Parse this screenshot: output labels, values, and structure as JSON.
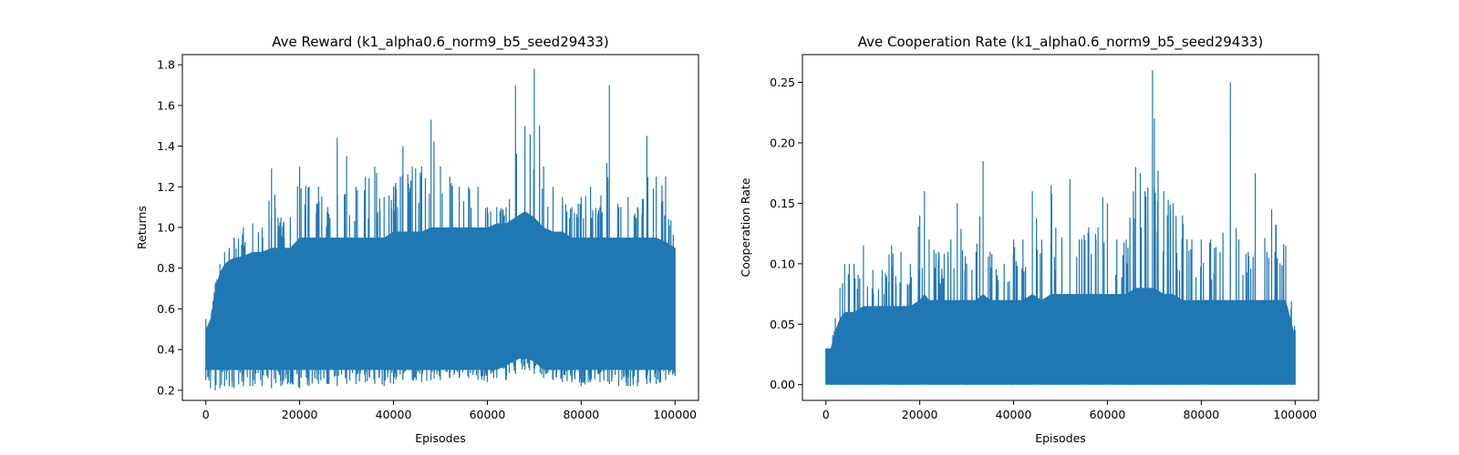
{
  "chart_data": [
    {
      "type": "line",
      "title": "Ave Reward (k1_alpha0.6_norm9_b5_seed29433)",
      "xlabel": "Episodes",
      "ylabel": "Returns",
      "xlim": [
        -5000,
        105000
      ],
      "ylim": [
        0.15,
        1.85
      ],
      "xticks": [
        0,
        20000,
        40000,
        60000,
        80000,
        100000
      ],
      "xtick_labels": [
        "0",
        "20000",
        "40000",
        "60000",
        "80000",
        "100000"
      ],
      "yticks": [
        0.2,
        0.4,
        0.6,
        0.8,
        1.0,
        1.2,
        1.4,
        1.6,
        1.8
      ],
      "ytick_labels": [
        "0.2",
        "0.4",
        "0.6",
        "0.8",
        "1.0",
        "1.2",
        "1.4",
        "1.6",
        "1.8"
      ],
      "grid": false,
      "color": "#1f77b4",
      "series": [
        {
          "x": [
            0,
            1000,
            2000,
            3000,
            4000,
            5000,
            6000,
            8000,
            10000,
            12000,
            14000,
            16000,
            18000,
            20000,
            22000,
            24000,
            26000,
            28000,
            30000,
            32000,
            34000,
            36000,
            38000,
            40000,
            42000,
            44000,
            46000,
            48000,
            50000,
            52000,
            54000,
            56000,
            58000,
            60000,
            62000,
            64000,
            66000,
            68000,
            70000,
            72000,
            74000,
            76000,
            78000,
            80000,
            82000,
            84000,
            86000,
            88000,
            90000,
            92000,
            94000,
            96000,
            98000,
            100000
          ],
          "lower": [
            0.25,
            0.21,
            0.2,
            0.21,
            0.22,
            0.22,
            0.21,
            0.22,
            0.22,
            0.22,
            0.21,
            0.22,
            0.23,
            0.21,
            0.22,
            0.23,
            0.23,
            0.22,
            0.23,
            0.23,
            0.24,
            0.23,
            0.22,
            0.23,
            0.25,
            0.25,
            0.24,
            0.25,
            0.25,
            0.26,
            0.26,
            0.26,
            0.25,
            0.24,
            0.26,
            0.25,
            0.28,
            0.3,
            0.28,
            0.26,
            0.25,
            0.24,
            0.24,
            0.22,
            0.24,
            0.24,
            0.23,
            0.22,
            0.22,
            0.22,
            0.23,
            0.23,
            0.25,
            0.27
          ],
          "upper": [
            0.55,
            0.55,
            0.72,
            0.82,
            0.88,
            0.9,
            0.95,
            1.0,
            1.02,
            1.0,
            1.29,
            1.05,
            1.05,
            1.3,
            1.2,
            1.2,
            1.1,
            1.44,
            1.35,
            1.2,
            1.25,
            1.3,
            1.15,
            1.2,
            1.4,
            1.3,
            1.3,
            1.53,
            1.3,
            1.25,
            1.2,
            1.2,
            1.2,
            1.1,
            1.1,
            1.1,
            1.7,
            1.5,
            1.78,
            1.3,
            1.2,
            1.15,
            1.1,
            1.15,
            1.2,
            1.1,
            1.7,
            1.1,
            1.15,
            1.1,
            1.45,
            1.25,
            1.25,
            0.9
          ],
          "core_low": [
            0.3,
            0.3,
            0.3,
            0.3,
            0.3,
            0.3,
            0.3,
            0.3,
            0.3,
            0.3,
            0.3,
            0.3,
            0.3,
            0.3,
            0.3,
            0.3,
            0.3,
            0.3,
            0.3,
            0.3,
            0.3,
            0.3,
            0.3,
            0.3,
            0.3,
            0.3,
            0.3,
            0.3,
            0.3,
            0.3,
            0.3,
            0.3,
            0.3,
            0.3,
            0.3,
            0.32,
            0.35,
            0.36,
            0.34,
            0.3,
            0.3,
            0.3,
            0.3,
            0.3,
            0.3,
            0.3,
            0.3,
            0.3,
            0.3,
            0.3,
            0.3,
            0.3,
            0.3,
            0.3
          ],
          "core_high": [
            0.5,
            0.55,
            0.7,
            0.78,
            0.82,
            0.84,
            0.85,
            0.86,
            0.88,
            0.88,
            0.9,
            0.9,
            0.9,
            0.95,
            0.95,
            0.95,
            0.95,
            0.95,
            0.95,
            0.95,
            0.95,
            0.95,
            0.95,
            0.98,
            0.98,
            0.98,
            0.98,
            1.0,
            1.0,
            1.0,
            1.0,
            1.0,
            1.0,
            1.0,
            1.02,
            1.02,
            1.05,
            1.08,
            1.05,
            1.0,
            0.98,
            0.98,
            0.95,
            0.95,
            0.95,
            0.95,
            0.95,
            0.95,
            0.95,
            0.95,
            0.95,
            0.95,
            0.93,
            0.9
          ]
        }
      ]
    },
    {
      "type": "line",
      "title": "Ave Cooperation Rate (k1_alpha0.6_norm9_b5_seed29433)",
      "xlabel": "Episodes",
      "ylabel": "Cooperation Rate",
      "xlim": [
        -5000,
        105000
      ],
      "ylim": [
        -0.013,
        0.273
      ],
      "xticks": [
        0,
        20000,
        40000,
        60000,
        80000,
        100000
      ],
      "xtick_labels": [
        "0",
        "20000",
        "40000",
        "60000",
        "80000",
        "100000"
      ],
      "yticks": [
        0.0,
        0.05,
        0.1,
        0.15,
        0.2,
        0.25
      ],
      "ytick_labels": [
        "0.00",
        "0.05",
        "0.10",
        "0.15",
        "0.20",
        "0.25"
      ],
      "grid": false,
      "color": "#1f77b4",
      "series": [
        {
          "x": [
            0,
            1000,
            2000,
            3000,
            4000,
            5000,
            6000,
            8000,
            10000,
            12000,
            14000,
            16000,
            18000,
            20000,
            21000,
            22000,
            24000,
            26000,
            28000,
            30000,
            32000,
            33500,
            35000,
            38000,
            40000,
            42000,
            44000,
            46000,
            48000,
            49000,
            52000,
            54000,
            56000,
            58000,
            59000,
            60000,
            62000,
            64000,
            66000,
            67000,
            68000,
            69600,
            70000,
            72000,
            74000,
            76000,
            78000,
            80000,
            82000,
            84000,
            86200,
            88000,
            90000,
            91500,
            94000,
            95000,
            98000,
            100000
          ],
          "lower": [
            0,
            0,
            0,
            0,
            0,
            0,
            0,
            0,
            0,
            0,
            0,
            0,
            0,
            0,
            0,
            0,
            0,
            0,
            0,
            0,
            0,
            0,
            0,
            0,
            0,
            0,
            0,
            0,
            0,
            0,
            0,
            0,
            0,
            0,
            0,
            0,
            0,
            0,
            0,
            0,
            0,
            0,
            0,
            0,
            0,
            0,
            0,
            0,
            0,
            0,
            0,
            0,
            0,
            0,
            0,
            0,
            0,
            0
          ],
          "upper": [
            0.03,
            0.03,
            0.055,
            0.08,
            0.1,
            0.1,
            0.1,
            0.115,
            0.095,
            0.095,
            0.115,
            0.11,
            0.1,
            0.14,
            0.16,
            0.12,
            0.11,
            0.11,
            0.15,
            0.1,
            0.11,
            0.185,
            0.11,
            0.1,
            0.12,
            0.12,
            0.16,
            0.12,
            0.165,
            0.13,
            0.17,
            0.12,
            0.13,
            0.13,
            0.155,
            0.15,
            0.12,
            0.12,
            0.18,
            0.175,
            0.16,
            0.26,
            0.22,
            0.16,
            0.15,
            0.14,
            0.12,
            0.12,
            0.12,
            0.11,
            0.25,
            0.12,
            0.11,
            0.175,
            0.11,
            0.145,
            0.115,
            0.045
          ],
          "core_low": [
            0,
            0,
            0,
            0,
            0,
            0,
            0,
            0,
            0,
            0,
            0,
            0,
            0,
            0,
            0,
            0,
            0,
            0,
            0,
            0,
            0,
            0,
            0,
            0,
            0,
            0,
            0,
            0,
            0,
            0,
            0,
            0,
            0,
            0,
            0,
            0,
            0,
            0,
            0,
            0,
            0,
            0,
            0,
            0,
            0,
            0,
            0,
            0,
            0,
            0,
            0,
            0,
            0,
            0,
            0,
            0,
            0,
            0
          ],
          "core_high": [
            0.03,
            0.03,
            0.045,
            0.055,
            0.06,
            0.06,
            0.06,
            0.065,
            0.065,
            0.065,
            0.065,
            0.065,
            0.065,
            0.07,
            0.075,
            0.07,
            0.07,
            0.07,
            0.07,
            0.07,
            0.07,
            0.075,
            0.07,
            0.07,
            0.07,
            0.07,
            0.075,
            0.07,
            0.075,
            0.075,
            0.075,
            0.075,
            0.075,
            0.075,
            0.075,
            0.075,
            0.075,
            0.075,
            0.08,
            0.08,
            0.08,
            0.08,
            0.08,
            0.075,
            0.075,
            0.07,
            0.07,
            0.07,
            0.07,
            0.07,
            0.07,
            0.07,
            0.07,
            0.07,
            0.07,
            0.07,
            0.07,
            0.04
          ]
        }
      ]
    }
  ]
}
